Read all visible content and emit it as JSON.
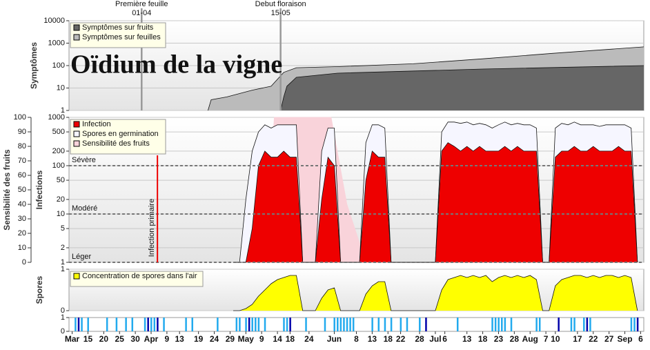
{
  "chart_data": [
    {
      "type": "area",
      "title": "Oïdium de la vigne",
      "ylabel": "Symptômes",
      "ylog": true,
      "grid": true,
      "legend": "top-left",
      "xlim": [
        8,
        190
      ],
      "ylim": [
        1,
        10000
      ],
      "yticks": [
        1,
        10,
        100,
        1000,
        10000
      ],
      "annotations": [
        {
          "x": 31,
          "label": "Première feuille",
          "date": "01-04"
        },
        {
          "x": 75,
          "label": "Debut floraison",
          "date": "15-05"
        }
      ],
      "series": [
        {
          "name": "Symptômes sur fruits",
          "color": "#666666",
          "x": [
            75,
            76,
            77,
            80,
            93,
            139,
            190
          ],
          "values": [
            1,
            4,
            12,
            30,
            46,
            70,
            100
          ]
        },
        {
          "name": "Symptômes sur feuilles",
          "color": "#bbbbbb",
          "x": [
            52,
            53,
            58,
            66,
            72,
            76,
            80,
            93,
            117,
            139,
            161,
            190
          ],
          "values": [
            1,
            3,
            4,
            8,
            12,
            50,
            80,
            90,
            120,
            200,
            350,
            680
          ]
        }
      ]
    },
    {
      "type": "area",
      "ylabel": "Infections",
      "y2label": "Sensibilité des fruits",
      "ylog": true,
      "grid": true,
      "legend": "top-left",
      "xlim": [
        8,
        190
      ],
      "ylim": [
        1,
        1000
      ],
      "yticks": [
        1,
        2,
        5,
        10,
        20,
        50,
        100,
        200,
        500,
        1000
      ],
      "y2lim": [
        0,
        100
      ],
      "y2ticks": [
        0,
        10,
        20,
        30,
        40,
        50,
        60,
        70,
        80,
        90,
        100
      ],
      "thresholds": [
        {
          "value": 100,
          "label": "Sévère"
        },
        {
          "value": 10,
          "label": "Modéré"
        },
        {
          "value": 1,
          "label": "Léger"
        }
      ],
      "annotations": [
        {
          "x": 36,
          "label": "Infection primaire"
        }
      ],
      "x": [
        60,
        62,
        64,
        66,
        68,
        70,
        72,
        74,
        76,
        78,
        80,
        82,
        84,
        86,
        88,
        90,
        92,
        94,
        96,
        98,
        100,
        102,
        104,
        106,
        108,
        110,
        112,
        114,
        116,
        118,
        120,
        122,
        124,
        126,
        128,
        130,
        132,
        134,
        136,
        138,
        140,
        142,
        144,
        146,
        148,
        150,
        152,
        154,
        156,
        158,
        160,
        162,
        164,
        166,
        168,
        170,
        172,
        174,
        176,
        178,
        180,
        182,
        184,
        186,
        188
      ],
      "series": [
        {
          "name": "Infection",
          "color": "#ee0000",
          "values": [
            1,
            1,
            1,
            5,
            100,
            200,
            150,
            150,
            200,
            150,
            150,
            1,
            1,
            1,
            20,
            150,
            100,
            1,
            1,
            1,
            1,
            50,
            200,
            150,
            150,
            1,
            1,
            1,
            1,
            1,
            1,
            1,
            1,
            200,
            300,
            250,
            200,
            250,
            200,
            250,
            200,
            200,
            200,
            250,
            200,
            250,
            200,
            200,
            200,
            1,
            1,
            150,
            200,
            200,
            250,
            200,
            200,
            250,
            200,
            200,
            200,
            250,
            200,
            200,
            1
          ]
        },
        {
          "name": "Spores en germination",
          "color": "#f6f6ff",
          "values": [
            1,
            1,
            20,
            200,
            500,
            700,
            600,
            700,
            700,
            700,
            700,
            1,
            1,
            1,
            200,
            600,
            600,
            1,
            1,
            1,
            1,
            300,
            700,
            700,
            600,
            1,
            1,
            1,
            1,
            1,
            1,
            1,
            1,
            500,
            800,
            800,
            750,
            800,
            700,
            750,
            700,
            600,
            700,
            800,
            700,
            750,
            700,
            700,
            600,
            1,
            1,
            600,
            750,
            700,
            800,
            700,
            700,
            700,
            650,
            700,
            700,
            700,
            700,
            600,
            1
          ]
        },
        {
          "name": "Sensibilité des fruits",
          "color": "#f9d3da",
          "axis": "y2",
          "x": [
            70,
            73,
            91,
            96,
            102
          ],
          "values": [
            0,
            100,
            100,
            40,
            0
          ]
        }
      ]
    },
    {
      "type": "area",
      "ylabel": "Spores",
      "legend": "top-left",
      "grid": true,
      "xlim": [
        8,
        190
      ],
      "ylim": [
        0,
        1
      ],
      "yticks": [
        0,
        1
      ],
      "x": [
        60,
        62,
        64,
        66,
        68,
        70,
        72,
        74,
        76,
        78,
        80,
        82,
        84,
        86,
        88,
        90,
        92,
        94,
        96,
        98,
        100,
        102,
        104,
        106,
        108,
        110,
        112,
        114,
        116,
        118,
        120,
        122,
        124,
        126,
        128,
        130,
        132,
        134,
        136,
        138,
        140,
        142,
        144,
        146,
        148,
        150,
        152,
        154,
        156,
        158,
        160,
        162,
        164,
        166,
        168,
        170,
        172,
        174,
        176,
        178,
        180,
        182,
        184,
        186,
        188
      ],
      "series": [
        {
          "name": "Concentration de spores dans l'air",
          "color": "#ffff00",
          "values": [
            0,
            0,
            0.05,
            0.15,
            0.35,
            0.5,
            0.65,
            0.75,
            0.8,
            0.85,
            0.85,
            0,
            0,
            0,
            0.3,
            0.5,
            0.55,
            0,
            0,
            0,
            0,
            0.4,
            0.6,
            0.7,
            0.7,
            0,
            0,
            0,
            0,
            0,
            0,
            0,
            0,
            0.5,
            0.75,
            0.8,
            0.85,
            0.8,
            0.85,
            0.8,
            0.85,
            0.7,
            0.8,
            0.85,
            0.8,
            0.85,
            0.8,
            0.85,
            0.75,
            0,
            0,
            0.6,
            0.75,
            0.8,
            0.85,
            0.85,
            0.8,
            0.85,
            0.8,
            0.85,
            0.85,
            0.8,
            0.85,
            0.8,
            0
          ]
        }
      ]
    },
    {
      "type": "bar",
      "xlim": [
        8,
        190
      ],
      "ylim": [
        0,
        1
      ],
      "yticks": [
        0,
        1
      ],
      "xticks": [
        {
          "value": 9,
          "label": "Mar"
        },
        {
          "value": 14,
          "label": "15"
        },
        {
          "value": 19,
          "label": "20"
        },
        {
          "value": 24,
          "label": "25"
        },
        {
          "value": 29,
          "label": "30"
        },
        {
          "value": 34,
          "label": "Apr"
        },
        {
          "value": 39,
          "label": "9"
        },
        {
          "value": 43,
          "label": "13"
        },
        {
          "value": 49,
          "label": "19"
        },
        {
          "value": 54,
          "label": "24"
        },
        {
          "value": 59,
          "label": "29"
        },
        {
          "value": 64,
          "label": "May"
        },
        {
          "value": 69,
          "label": "9"
        },
        {
          "value": 74,
          "label": "14"
        },
        {
          "value": 78,
          "label": "18"
        },
        {
          "value": 84,
          "label": "24"
        },
        {
          "value": 92,
          "label": "Jun"
        },
        {
          "value": 99,
          "label": "8"
        },
        {
          "value": 104,
          "label": "13"
        },
        {
          "value": 109,
          "label": "18"
        },
        {
          "value": 113,
          "label": "22"
        },
        {
          "value": 119,
          "label": "28"
        },
        {
          "value": 124,
          "label": "Jul"
        },
        {
          "value": 127,
          "label": "6"
        },
        {
          "value": 134,
          "label": "13"
        },
        {
          "value": 139,
          "label": "18"
        },
        {
          "value": 144,
          "label": "23"
        },
        {
          "value": 149,
          "label": "28"
        },
        {
          "value": 154,
          "label": "Aug"
        },
        {
          "value": 159,
          "label": "7"
        },
        {
          "value": 162,
          "label": "10"
        },
        {
          "value": 169,
          "label": "17"
        },
        {
          "value": 174,
          "label": "22"
        },
        {
          "value": 179,
          "label": "27"
        },
        {
          "value": 184,
          "label": "Sep"
        },
        {
          "value": 189,
          "label": "6"
        }
      ],
      "series": [
        {
          "color": "#22aaee",
          "x": [
            10,
            12,
            14,
            20,
            23,
            26,
            28,
            32,
            34,
            35,
            38,
            45,
            47,
            55,
            61,
            62,
            64,
            66,
            67,
            68,
            70,
            76,
            77,
            83,
            89,
            92,
            93,
            94,
            95,
            96,
            97,
            98,
            104,
            106,
            108,
            110,
            113,
            115,
            119,
            131,
            142,
            143,
            144,
            145,
            146,
            148,
            156,
            157,
            167,
            168,
            171,
            173,
            186,
            187
          ],
          "values": [
            1,
            1,
            1,
            1,
            1,
            1,
            1,
            1,
            1,
            1,
            1,
            1,
            1,
            1,
            1,
            1,
            1,
            1,
            1,
            1,
            1,
            1,
            1,
            1,
            1,
            1,
            1,
            1,
            1,
            1,
            1,
            1,
            1,
            1,
            1,
            1,
            1,
            1,
            1,
            1,
            1,
            1,
            1,
            1,
            1,
            1,
            1,
            1,
            1,
            1,
            1,
            1,
            1,
            1
          ]
        },
        {
          "color": "#0000aa",
          "x": [
            11,
            33,
            36,
            65,
            78,
            121,
            163,
            172,
            188
          ],
          "values": [
            1,
            1,
            1,
            1,
            1,
            1,
            1,
            1,
            1
          ]
        }
      ]
    }
  ]
}
